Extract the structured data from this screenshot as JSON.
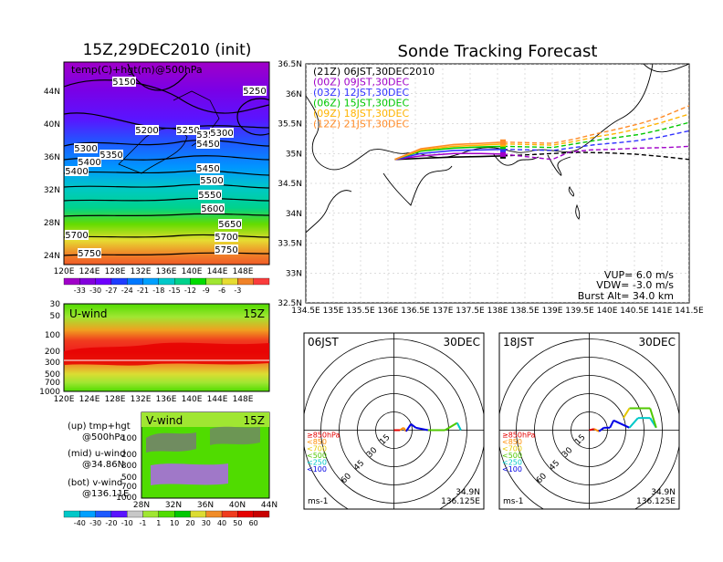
{
  "left": {
    "title": "15Z,29DEC2010 (init)",
    "panel_label": "temp(C)+hgt(m)@500hPa",
    "contour_labels": [
      "5150",
      "5250",
      "5200",
      "5250",
      "5300",
      "5350",
      "5300",
      "5350",
      "5400",
      "5450",
      "5400",
      "5450",
      "5500",
      "5550",
      "5600",
      "5650",
      "5700",
      "5700",
      "5750",
      "5750"
    ],
    "lat_ticks": [
      "44N",
      "40N",
      "36N",
      "32N",
      "28N",
      "24N"
    ],
    "lon_ticks": [
      "120E",
      "124E",
      "128E",
      "132E",
      "136E",
      "140E",
      "144E",
      "148E"
    ],
    "temp_colorbar": [
      "-33",
      "-30",
      "-27",
      "-24",
      "-21",
      "-18",
      "-15",
      "-12",
      "-9",
      "-6",
      "-3"
    ],
    "temp_colors": [
      "#a000c8",
      "#8200dc",
      "#6e00ff",
      "#1e3cff",
      "#0078ff",
      "#00a0ff",
      "#00c8c8",
      "#00d28c",
      "#00dc00",
      "#a0e632",
      "#e6dc32",
      "#f08228",
      "#fa3c3c"
    ],
    "uwind": {
      "label": "U-wind",
      "time": "15Z",
      "p_ticks": [
        "30",
        "50",
        "100",
        "200",
        "300",
        "500",
        "700",
        "1000"
      ]
    },
    "vwind": {
      "label": "V-wind",
      "time": "15Z",
      "p_ticks": [
        "100",
        "200",
        "300",
        "500",
        "700",
        "1000"
      ],
      "lat_ticks": [
        "28N",
        "32N",
        "36N",
        "40N",
        "44N"
      ]
    },
    "legend_lines": [
      "(up) tmp+hgt",
      "@500hPa",
      "(mid) u-wind",
      "@34.86N",
      "(bot) v-wind",
      "@136.11E"
    ],
    "wind_colorbar": [
      "-40",
      "-30",
      "-20",
      "-10",
      "-1",
      "1",
      "10",
      "20",
      "30",
      "40",
      "50",
      "60"
    ]
  },
  "track": {
    "title": "Sonde Tracking Forecast",
    "legend": [
      {
        "text": "(21Z) 06JST,30DEC2010",
        "color": "#000000"
      },
      {
        "text": "(00Z) 09JST,30DEC",
        "color": "#a000c8"
      },
      {
        "text": "(03Z) 12JST,30DEC",
        "color": "#3232ff"
      },
      {
        "text": "(06Z) 15JST,30DEC",
        "color": "#00c800"
      },
      {
        "text": "(09Z) 18JST,30DEC",
        "color": "#ffb400"
      },
      {
        "text": "(12Z) 21JST,30DEC",
        "color": "#ff8c28"
      }
    ],
    "lat_ticks": [
      "36.5N",
      "36N",
      "35.5N",
      "35N",
      "34.5N",
      "34N",
      "33.5N",
      "33N",
      "32.5N"
    ],
    "lon_ticks": [
      "134.5E",
      "135E",
      "135.5E",
      "136E",
      "136.5E",
      "137E",
      "137.5E",
      "138E",
      "138.5E",
      "139E",
      "139.5E",
      "140E",
      "140.5E",
      "141E",
      "141.5E"
    ],
    "info": [
      "VUP= 6.0 m/s",
      "VDW= -3.0 m/s",
      "Burst Alt= 34.0 km"
    ]
  },
  "chart_data": [
    {
      "type": "line",
      "title": "Sonde Tracking Forecast",
      "xlim": [
        134.5,
        141.5
      ],
      "ylim": [
        32.5,
        36.5
      ],
      "launch": {
        "lon": 136.125,
        "lat": 34.9
      },
      "series": [
        {
          "name": "(21Z) 06JST,30DEC2010",
          "color": "#000000",
          "x": [
            136.125,
            136.6,
            137.2,
            137.7,
            138.1,
            138.6,
            139.0,
            139.5,
            140.0,
            140.5,
            141.0,
            141.5
          ],
          "y": [
            34.9,
            34.92,
            34.94,
            34.95,
            34.96,
            34.98,
            35.0,
            35.02,
            35.01,
            34.99,
            34.95,
            34.9
          ]
        },
        {
          "name": "(00Z) 09JST,30DEC",
          "color": "#a000c8",
          "x": [
            136.125,
            136.6,
            137.2,
            137.7,
            138.1,
            138.6,
            139.0,
            139.3,
            139.7,
            140.1,
            140.6,
            141.1,
            141.5
          ],
          "y": [
            34.9,
            34.96,
            35.0,
            35.0,
            34.99,
            34.94,
            34.9,
            35.02,
            35.06,
            35.07,
            35.09,
            35.1,
            35.12
          ]
        },
        {
          "name": "(03Z) 12JST,30DEC",
          "color": "#3232ff",
          "x": [
            136.125,
            136.6,
            137.2,
            137.7,
            138.1,
            138.6,
            139.0,
            139.4,
            139.8,
            140.2,
            140.6,
            141.0,
            141.5
          ],
          "y": [
            34.9,
            35.0,
            35.05,
            35.06,
            35.07,
            35.06,
            35.05,
            35.1,
            35.15,
            35.18,
            35.22,
            35.28,
            35.38
          ]
        },
        {
          "name": "(06Z) 15JST,30DEC",
          "color": "#00c800",
          "x": [
            136.125,
            136.6,
            137.2,
            137.7,
            138.1,
            138.6,
            139.0,
            139.4,
            139.8,
            140.2,
            140.6,
            141.0,
            141.5
          ],
          "y": [
            34.9,
            35.04,
            35.09,
            35.11,
            35.12,
            35.11,
            35.1,
            35.16,
            35.22,
            35.27,
            35.32,
            35.4,
            35.52
          ]
        },
        {
          "name": "(09Z) 18JST,30DEC",
          "color": "#ffb400",
          "x": [
            136.125,
            136.6,
            137.2,
            137.7,
            138.1,
            138.6,
            139.0,
            139.4,
            139.8,
            140.2,
            140.6,
            141.0,
            141.5
          ],
          "y": [
            34.9,
            35.06,
            35.12,
            35.14,
            35.16,
            35.15,
            35.14,
            35.2,
            35.28,
            35.34,
            35.42,
            35.52,
            35.66
          ]
        },
        {
          "name": "(12Z) 21JST,30DEC",
          "color": "#ff8c28",
          "x": [
            136.125,
            136.6,
            137.2,
            137.7,
            138.1,
            138.6,
            139.0,
            139.4,
            139.8,
            140.2,
            140.6,
            141.0,
            141.5
          ],
          "y": [
            34.9,
            35.08,
            35.15,
            35.17,
            35.19,
            35.18,
            35.17,
            35.24,
            35.33,
            35.41,
            35.5,
            35.61,
            35.8
          ]
        }
      ]
    },
    {
      "type": "scatter",
      "title": "06JST",
      "date": "30DEC",
      "rings": [
        "15",
        "30",
        "45",
        "60"
      ],
      "location": [
        "34.9N",
        "136.125E"
      ],
      "unit": "ms-1",
      "pressure_legend": [
        {
          "text": "≥850hPa",
          "color": "#e60000"
        },
        {
          "text": "<850",
          "color": "#ff8c00"
        },
        {
          "text": "<700",
          "color": "#e6c800"
        },
        {
          "text": "<500",
          "color": "#50c800"
        },
        {
          "text": "<250",
          "color": "#00c8c8"
        },
        {
          "text": "<100",
          "color": "#0000e6"
        }
      ],
      "hodograph": [
        {
          "u": 0,
          "v": 0,
          "color": "#e60000"
        },
        {
          "u": 5,
          "v": 0,
          "color": "#e60000"
        },
        {
          "u": 8,
          "v": 2,
          "color": "#ff8c00"
        },
        {
          "u": 10,
          "v": -1,
          "color": "#ff8c00"
        },
        {
          "u": 14,
          "v": 5,
          "color": "#0000e6"
        },
        {
          "u": 18,
          "v": 2,
          "color": "#0000e6"
        },
        {
          "u": 28,
          "v": 0,
          "color": "#0000e6"
        },
        {
          "u": 42,
          "v": 0,
          "color": "#50c800"
        },
        {
          "u": 52,
          "v": 6,
          "color": "#50c800"
        },
        {
          "u": 55,
          "v": 0,
          "color": "#00c8c8"
        }
      ]
    },
    {
      "type": "scatter",
      "title": "18JST",
      "date": "30DEC",
      "rings": [
        "15",
        "30",
        "45",
        "60"
      ],
      "location": [
        "34.9N",
        "136.125E"
      ],
      "unit": "ms-1",
      "pressure_legend": [
        {
          "text": "≥850hPa",
          "color": "#e60000"
        },
        {
          "text": "<850",
          "color": "#ff8c00"
        },
        {
          "text": "<700",
          "color": "#e6c800"
        },
        {
          "text": "<500",
          "color": "#50c800"
        },
        {
          "text": "<250",
          "color": "#00c8c8"
        },
        {
          "text": "<100",
          "color": "#0000e6"
        }
      ],
      "hodograph": [
        {
          "u": 0,
          "v": 0,
          "color": "#e60000"
        },
        {
          "u": 4,
          "v": 1,
          "color": "#e60000"
        },
        {
          "u": 8,
          "v": -1,
          "color": "#ff8c00"
        },
        {
          "u": 12,
          "v": 2,
          "color": "#0000e6"
        },
        {
          "u": 17,
          "v": 2,
          "color": "#0000e6"
        },
        {
          "u": 20,
          "v": 8,
          "color": "#0000e6"
        },
        {
          "u": 33,
          "v": 2,
          "color": "#0000e6"
        },
        {
          "u": 40,
          "v": 10,
          "color": "#00c8c8"
        },
        {
          "u": 50,
          "v": 10,
          "color": "#00c8c8"
        },
        {
          "u": 55,
          "v": 2,
          "color": "#00c8c8"
        },
        {
          "u": 50,
          "v": 18,
          "color": "#50c800"
        },
        {
          "u": 33,
          "v": 18,
          "color": "#50c800"
        },
        {
          "u": 28,
          "v": 10,
          "color": "#e6c800"
        }
      ]
    }
  ]
}
